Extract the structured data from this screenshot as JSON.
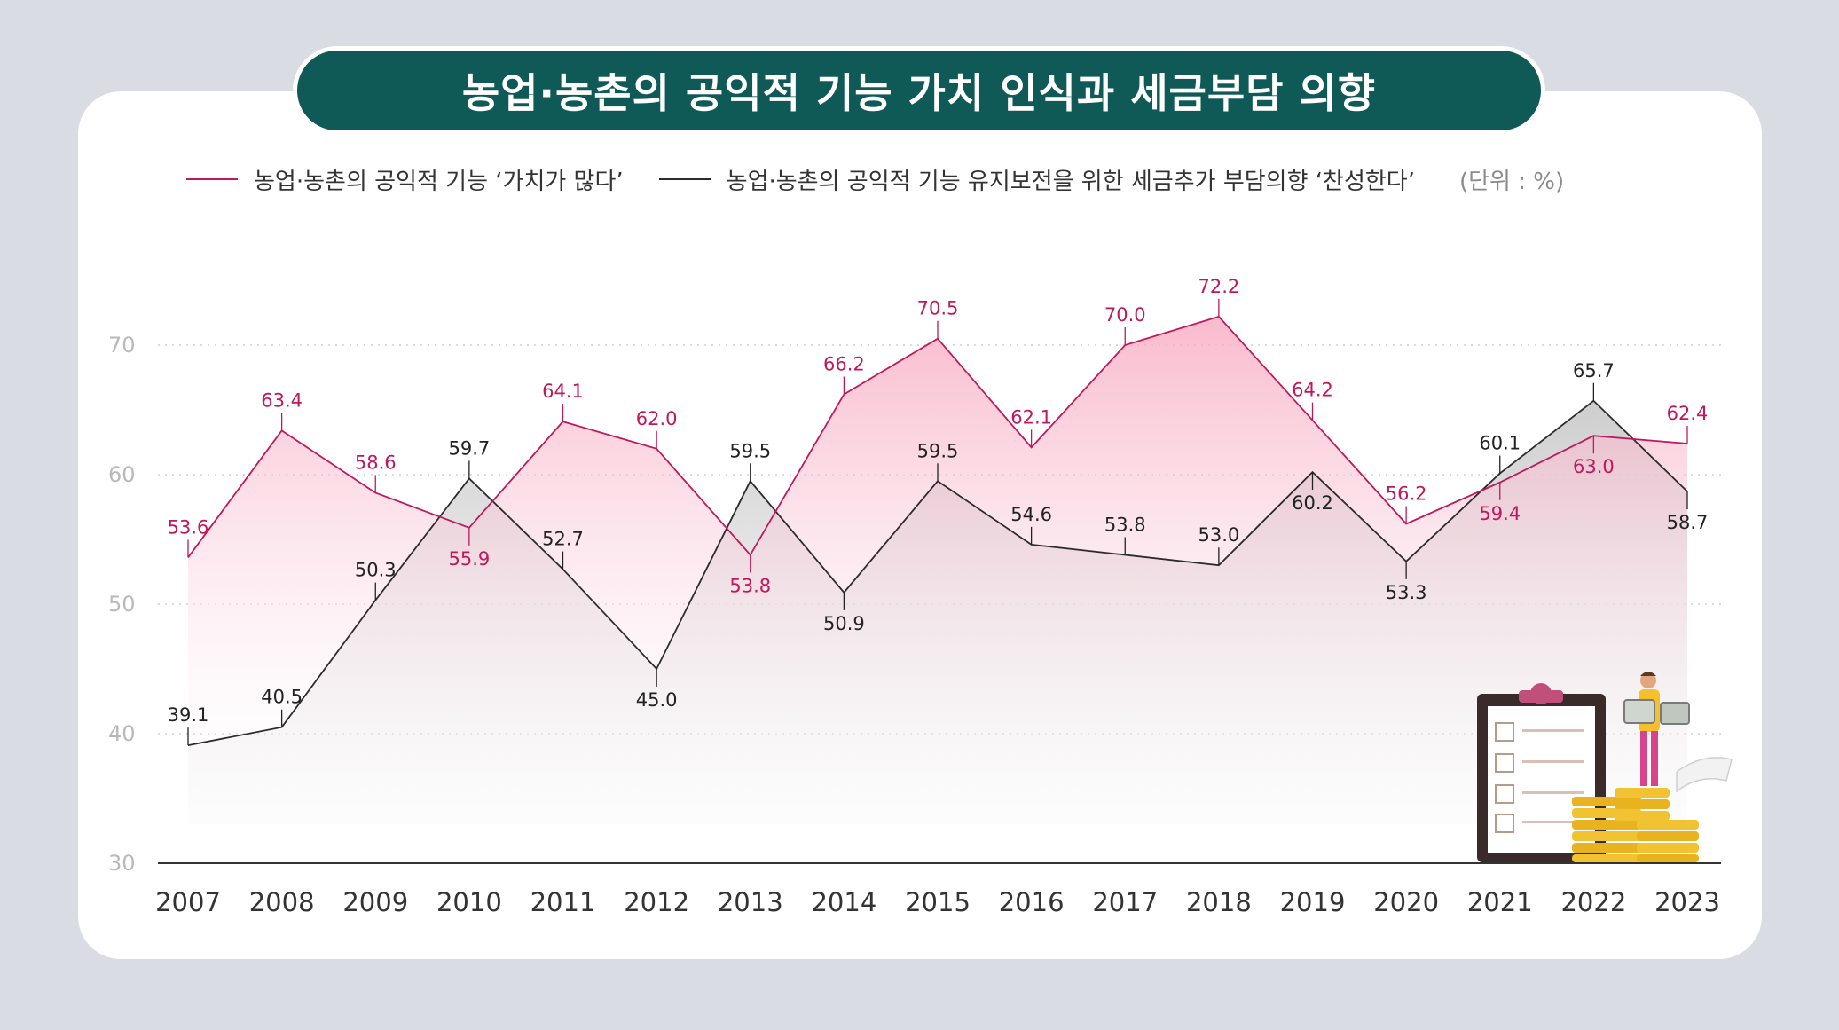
{
  "title": "농업·농촌의 공익적 기능 가치 인식과 세금부담 의향",
  "legend": {
    "series1": "농업·농촌의 공익적 기능 ‘가치가 많다’",
    "series2": "농업·농촌의 공익적 기능 유지보전을 위한 세금추가 부담의향 ‘찬성한다’",
    "unit": "(단위 : %)"
  },
  "colors": {
    "series1": "#c0185c",
    "series2": "#2b2b2b",
    "title_bg": "#0f5a56",
    "page_bg": "#d9dce3"
  },
  "chart_data": {
    "type": "line",
    "title": "농업·농촌의 공익적 기능 가치 인식과 세금부담 의향",
    "categories": [
      "2007",
      "2008",
      "2009",
      "2010",
      "2011",
      "2012",
      "2013",
      "2014",
      "2015",
      "2016",
      "2017",
      "2018",
      "2019",
      "2020",
      "2021",
      "2022",
      "2023"
    ],
    "series": [
      {
        "name": "농업·농촌의 공익적 기능 ‘가치가 많다’",
        "values": [
          53.6,
          63.4,
          58.6,
          55.9,
          64.1,
          62.0,
          53.8,
          66.2,
          70.5,
          62.1,
          70.0,
          72.2,
          64.2,
          56.2,
          59.4,
          63.0,
          62.4
        ]
      },
      {
        "name": "농업·농촌의 공익적 기능 유지보전을 위한 세금추가 부담의향 ‘찬성한다’",
        "values": [
          39.1,
          40.5,
          50.3,
          59.7,
          52.7,
          45.0,
          59.5,
          50.9,
          59.5,
          54.6,
          53.8,
          53.0,
          60.2,
          53.3,
          60.1,
          65.7,
          58.7
        ]
      }
    ],
    "yticks": [
      30,
      40,
      50,
      60,
      70
    ],
    "ylim": [
      30,
      70
    ],
    "unit": "%",
    "grid": true,
    "legend_position": "top"
  }
}
